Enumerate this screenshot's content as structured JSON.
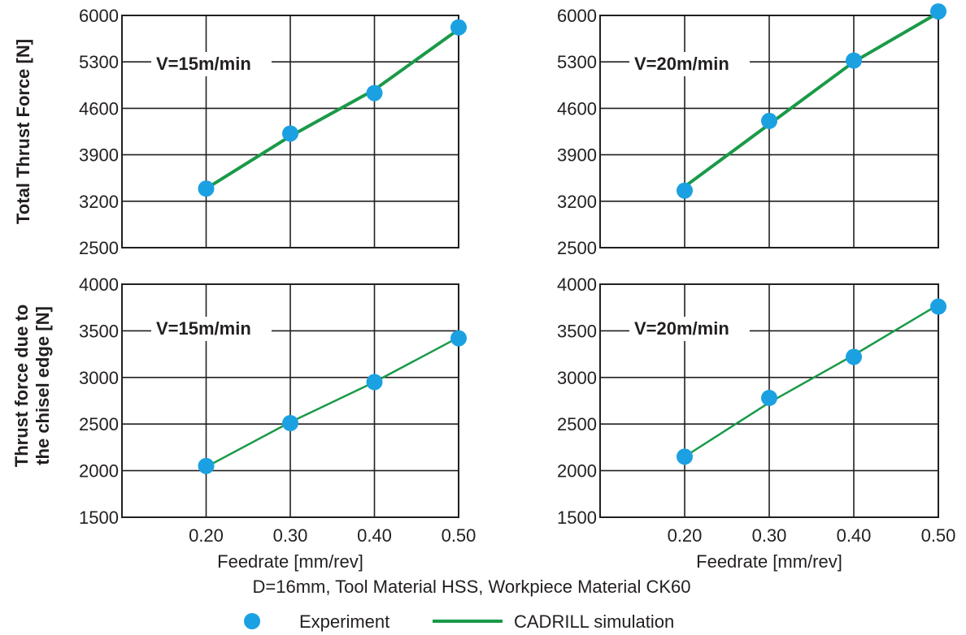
{
  "colors": {
    "experiment": "#1ba1e2",
    "simulation": "#1a9a48",
    "grid": "#231f20"
  },
  "caption": "D=16mm, Tool Material HSS, Workpiece Material CK60",
  "legend": {
    "experiment": "Experiment",
    "simulation": "CADRILL simulation"
  },
  "row_labels": {
    "top": "Total Thrust Force [N]",
    "bottom_line1": "Thrust force due to",
    "bottom_line2": "the chisel edge [N]"
  },
  "chart_data": [
    {
      "type": "line",
      "panel_label": "V=15m/min",
      "x": [
        0.2,
        0.3,
        0.4,
        0.5
      ],
      "xticks": [
        "0.20",
        "0.30",
        "0.40",
        "0.50"
      ],
      "xlabel": "",
      "ylabel": "Total Thrust Force [N]",
      "yticks": [
        2500,
        3200,
        3900,
        4600,
        5300,
        6000
      ],
      "xlim": [
        0.1,
        0.5
      ],
      "ylim": [
        2500,
        6000
      ],
      "grid": true,
      "series": [
        {
          "name": "Experiment",
          "kind": "points",
          "values": [
            3390,
            4220,
            4830,
            5820
          ]
        },
        {
          "name": "CADRILL simulation",
          "kind": "line",
          "values": [
            3390,
            4180,
            4880,
            5790
          ]
        }
      ]
    },
    {
      "type": "line",
      "panel_label": "V=20m/min",
      "x": [
        0.2,
        0.3,
        0.4,
        0.5
      ],
      "xticks": [
        "0.20",
        "0.30",
        "0.40",
        "0.50"
      ],
      "xlabel": "",
      "ylabel": "",
      "yticks": [
        2500,
        3200,
        3900,
        4600,
        5300,
        6000
      ],
      "xlim": [
        0.1,
        0.5
      ],
      "ylim": [
        2500,
        6000
      ],
      "grid": true,
      "series": [
        {
          "name": "Experiment",
          "kind": "points",
          "values": [
            3360,
            4410,
            5320,
            6060
          ]
        },
        {
          "name": "CADRILL simulation",
          "kind": "line",
          "values": [
            3420,
            4360,
            5300,
            6040
          ]
        }
      ]
    },
    {
      "type": "line",
      "panel_label": "V=15m/min",
      "x": [
        0.2,
        0.3,
        0.4,
        0.5
      ],
      "xticks": [
        "0.20",
        "0.30",
        "0.40",
        "0.50"
      ],
      "xlabel": "Feedrate [mm/rev]",
      "ylabel": "Thrust force due to the chisel edge [N]",
      "yticks": [
        1500,
        2000,
        2500,
        3000,
        3500,
        4000
      ],
      "xlim": [
        0.1,
        0.5
      ],
      "ylim": [
        1500,
        4000
      ],
      "grid": true,
      "series": [
        {
          "name": "Experiment",
          "kind": "points",
          "values": [
            2050,
            2510,
            2950,
            3420
          ]
        },
        {
          "name": "CADRILL simulation",
          "kind": "line",
          "values": [
            2040,
            2520,
            2950,
            3430
          ]
        }
      ]
    },
    {
      "type": "line",
      "panel_label": "V=20m/min",
      "x": [
        0.2,
        0.3,
        0.4,
        0.5
      ],
      "xticks": [
        "0.20",
        "0.30",
        "0.40",
        "0.50"
      ],
      "xlabel": "Feedrate [mm/rev]",
      "ylabel": "",
      "yticks": [
        1500,
        2000,
        2500,
        3000,
        3500,
        4000
      ],
      "xlim": [
        0.1,
        0.5
      ],
      "ylim": [
        1500,
        4000
      ],
      "grid": true,
      "series": [
        {
          "name": "Experiment",
          "kind": "points",
          "values": [
            2150,
            2780,
            3220,
            3760
          ]
        },
        {
          "name": "CADRILL simulation",
          "kind": "line",
          "values": [
            2150,
            2730,
            3240,
            3780
          ]
        }
      ]
    }
  ]
}
